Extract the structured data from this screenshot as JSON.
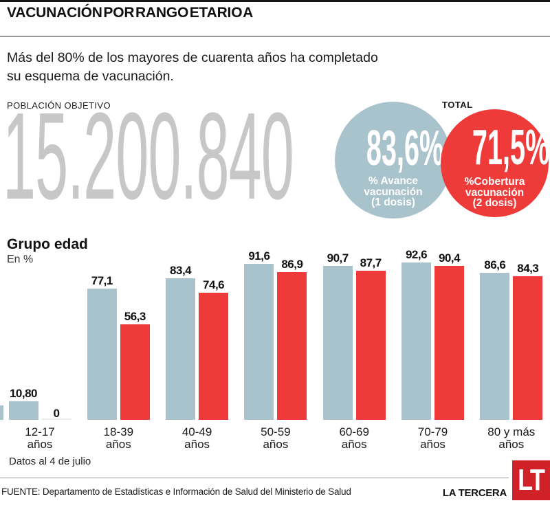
{
  "header": {
    "title": "VACUNACIÓN POR RANGO ETARIO A",
    "subtitle_line1": "Más del 80% de los mayores de cuarenta años ha completado",
    "subtitle_line2": "su esquema de vacunación."
  },
  "population": {
    "label": "POBLACIÓN OBJETIVO",
    "value": "15.200.840"
  },
  "totals": {
    "label": "TOTAL",
    "dose1": {
      "value": "83,6%",
      "line1": "% Avance",
      "line2": "vacunación",
      "line3": "(1 dosis)"
    },
    "dose2": {
      "value": "71,5%",
      "line1": "%Cobertura",
      "line2": "vacunación",
      "line3": "(2 dosis)"
    }
  },
  "chart": {
    "group_label": "Grupo edad",
    "unit_label": "En %"
  },
  "chart_data": {
    "type": "bar",
    "title": "Grupo edad (En %)",
    "categories": [
      "12-17 años",
      "18-39 años",
      "40-49 años",
      "50-59 años",
      "60-69 años",
      "70-79 años",
      "80 y más años"
    ],
    "series": [
      {
        "name": "% Avance vacunación (1 dosis)",
        "color": "#a9c3cc",
        "values": [
          10.8,
          77.1,
          83.4,
          91.6,
          90.7,
          92.6,
          86.6
        ],
        "labels": [
          "10,80",
          "77,1",
          "83,4",
          "91,6",
          "90,7",
          "92,6",
          "86,6"
        ]
      },
      {
        "name": "%Cobertura vacunación (2 dosis)",
        "color": "#ee3a38",
        "values": [
          0,
          56.3,
          74.6,
          86.9,
          87.7,
          90.4,
          84.3
        ],
        "labels": [
          "0",
          "56,3",
          "74,6",
          "86,9",
          "87,7",
          "90,4",
          "84,3"
        ]
      }
    ],
    "ylim": [
      0,
      100
    ],
    "grid": false,
    "value_labels": true,
    "legend_position": "none"
  },
  "footer": {
    "note": "Datos al 4 de julio",
    "source": "FUENTE: Departamento de Estadísticas e Información de Salud del Ministerio de Salud",
    "brand": "LA TERCERA",
    "logo_text": "LT"
  },
  "colors": {
    "dose1": "#a9c3cc",
    "dose2": "#ee3a38",
    "zero_bar": "#ececec",
    "big_number": "#c7c7c7",
    "logo_red": "#cf2127"
  }
}
